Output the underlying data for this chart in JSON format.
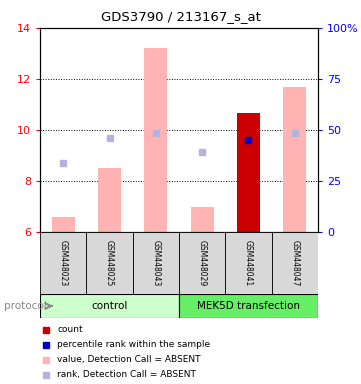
{
  "title": "GDS3790 / 213167_s_at",
  "samples": [
    "GSM448023",
    "GSM448025",
    "GSM448043",
    "GSM448029",
    "GSM448041",
    "GSM448047"
  ],
  "ylim": [
    6,
    14
  ],
  "yticks_left": [
    6,
    8,
    10,
    12,
    14
  ],
  "yticks_right": [
    0,
    25,
    50,
    75,
    100
  ],
  "bar_values": [
    6.6,
    8.5,
    13.2,
    7.0,
    10.65,
    11.7
  ],
  "bar_colors": [
    "#ffb3b3",
    "#ffb3b3",
    "#ffb3b3",
    "#ffb3b3",
    "#cc0000",
    "#ffb3b3"
  ],
  "rank_dots_y": [
    8.7,
    9.7,
    9.9,
    9.15,
    9.6,
    9.9
  ],
  "rank_dot_colors": [
    "#b3b3dd",
    "#b3b3dd",
    "#b3b3dd",
    "#b3b3dd",
    "#0000cc",
    "#b3b3dd"
  ],
  "bar_bottom": 6.0,
  "ctrl_color": "#ccffcc",
  "mek_color": "#66ee66",
  "legend_colors": [
    "#cc0000",
    "#0000cc",
    "#ffb3b3",
    "#b3b3dd"
  ],
  "legend_labels": [
    "count",
    "percentile rank within the sample",
    "value, Detection Call = ABSENT",
    "rank, Detection Call = ABSENT"
  ]
}
